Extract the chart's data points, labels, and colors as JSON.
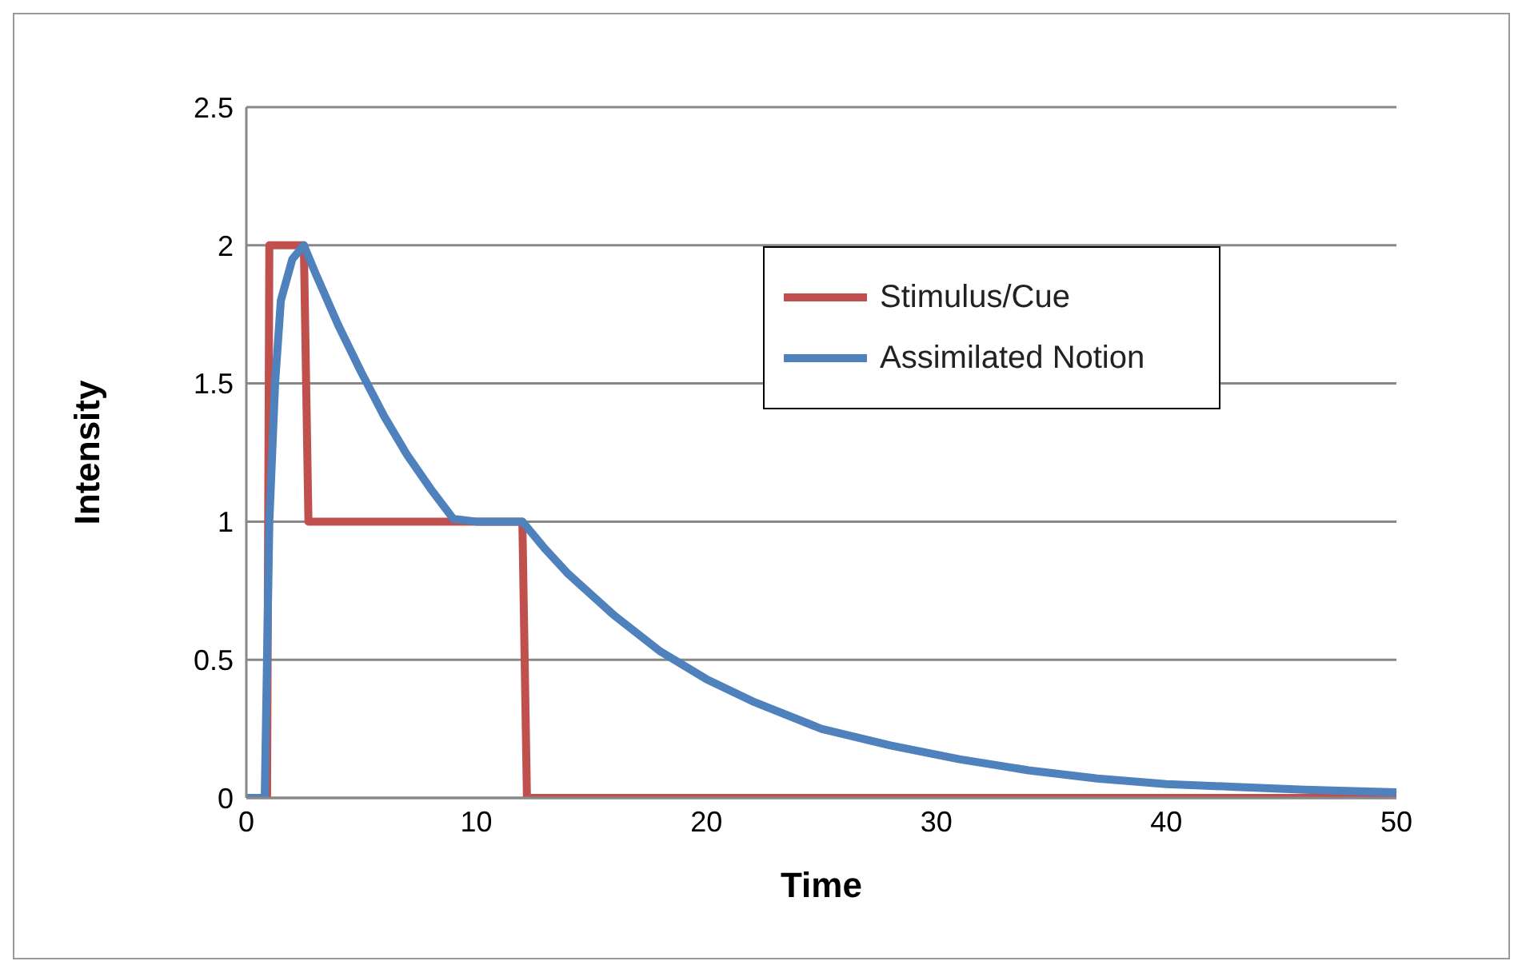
{
  "chart_data": {
    "type": "line",
    "xlabel": "Time",
    "ylabel": "Intensity",
    "xlim": [
      0,
      50
    ],
    "xticks": [
      0,
      10,
      20,
      30,
      40,
      50
    ],
    "ylim": [
      0,
      2.5
    ],
    "yticks": [
      0,
      0.5,
      1,
      1.5,
      2,
      2.5
    ],
    "grid": "y",
    "legend": "top right",
    "marker": "none",
    "line_style": "solid",
    "series": [
      {
        "name": "Stimulus/Cue",
        "color": "#c0504d",
        "x": [
          0,
          0.9,
          1,
          2.5,
          2.7,
          12,
          12.2,
          50
        ],
        "values": [
          0,
          0,
          2,
          2,
          1,
          1,
          0,
          0
        ]
      },
      {
        "name": "Assimilated Notion",
        "color": "#4f81bd",
        "x": [
          0,
          0.8,
          0.9,
          1,
          1.25,
          1.5,
          2,
          2.5,
          3,
          4,
          5,
          6,
          7,
          8,
          9,
          10,
          11,
          12,
          13,
          14,
          16,
          18,
          20,
          22,
          25,
          28,
          31,
          34,
          37,
          40,
          43,
          46,
          50
        ],
        "values": [
          0,
          0,
          0.5,
          1,
          1.5,
          1.8,
          1.95,
          2,
          1.9,
          1.71,
          1.54,
          1.38,
          1.24,
          1.12,
          1.01,
          1,
          1,
          1,
          0.9,
          0.81,
          0.66,
          0.53,
          0.43,
          0.35,
          0.25,
          0.19,
          0.14,
          0.1,
          0.07,
          0.05,
          0.04,
          0.03,
          0.02
        ]
      }
    ]
  }
}
